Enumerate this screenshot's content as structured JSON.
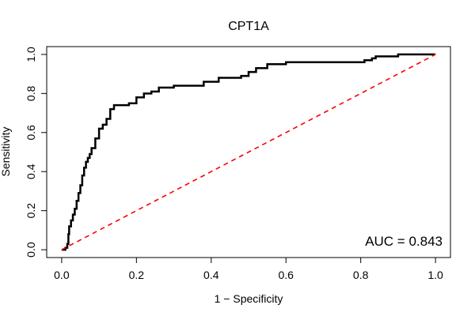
{
  "chart_data": {
    "type": "line",
    "title": "CPT1A",
    "xlabel": "1 − Specificity",
    "ylabel": "Sensitivity",
    "xlim": [
      -0.04,
      1.04
    ],
    "ylim": [
      -0.04,
      1.04
    ],
    "x_ticks": [
      0.0,
      0.2,
      0.4,
      0.6,
      0.8,
      1.0
    ],
    "x_tick_labels": [
      "0.0",
      "0.2",
      "0.4",
      "0.6",
      "0.8",
      "1.0"
    ],
    "y_ticks": [
      0.0,
      0.2,
      0.4,
      0.6,
      0.8,
      1.0
    ],
    "y_tick_labels": [
      "0.0",
      "0.2",
      "0.4",
      "0.6",
      "0.8",
      "1.0"
    ],
    "annotation": "AUC = 0.843",
    "grid": false,
    "series": [
      {
        "style": "solid",
        "color": "#000000",
        "x": [
          0.0,
          0.01,
          0.015,
          0.018,
          0.02,
          0.025,
          0.03,
          0.035,
          0.04,
          0.045,
          0.05,
          0.055,
          0.06,
          0.065,
          0.07,
          0.075,
          0.08,
          0.09,
          0.1,
          0.11,
          0.12,
          0.13,
          0.14,
          0.16,
          0.18,
          0.2,
          0.22,
          0.24,
          0.26,
          0.3,
          0.34,
          0.38,
          0.42,
          0.44,
          0.48,
          0.5,
          0.52,
          0.55,
          0.6,
          0.7,
          0.8,
          0.81,
          0.83,
          0.84,
          0.9,
          1.0
        ],
        "y": [
          0.0,
          0.01,
          0.03,
          0.08,
          0.12,
          0.15,
          0.18,
          0.21,
          0.25,
          0.29,
          0.33,
          0.38,
          0.42,
          0.45,
          0.47,
          0.49,
          0.52,
          0.57,
          0.62,
          0.64,
          0.67,
          0.72,
          0.74,
          0.74,
          0.75,
          0.78,
          0.8,
          0.81,
          0.83,
          0.84,
          0.84,
          0.86,
          0.88,
          0.88,
          0.89,
          0.91,
          0.93,
          0.95,
          0.96,
          0.96,
          0.96,
          0.97,
          0.98,
          0.99,
          1.0,
          1.0
        ]
      },
      {
        "style": "dashed",
        "color": "#ff0000",
        "x": [
          0.0,
          1.0
        ],
        "y": [
          0.0,
          1.0
        ]
      }
    ]
  }
}
